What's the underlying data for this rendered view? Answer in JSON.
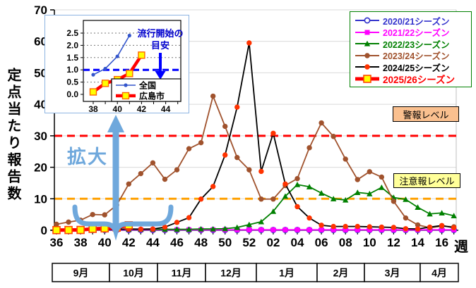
{
  "annotations": {
    "zoom_label": "拡大"
  },
  "chart_data": {
    "type": "line",
    "ylabel": "定点当たり報告数",
    "x_unit": "週",
    "ylim": [
      0,
      70
    ],
    "yticks": [
      0,
      10,
      20,
      30,
      40,
      50,
      60,
      70
    ],
    "x_tick_step": 2,
    "x": [
      "36",
      "37",
      "38",
      "39",
      "40",
      "41",
      "42",
      "43",
      "44",
      "45",
      "46",
      "47",
      "48",
      "49",
      "50",
      "51",
      "52",
      "01",
      "02",
      "03",
      "04",
      "05",
      "06",
      "07",
      "08",
      "09",
      "10",
      "11",
      "12",
      "13",
      "14",
      "15",
      "16",
      "17"
    ],
    "months": [
      "9月",
      "10月",
      "11月",
      "12月",
      "1月",
      "2月",
      "3月",
      "4月"
    ],
    "thresholds": [
      {
        "label": "警報レベル",
        "value": 30,
        "color": "#FF0000",
        "box_color": "#FAC08F"
      },
      {
        "label": "注意報レベル",
        "value": 10,
        "color": "#FFA000",
        "box_color": "#FFFF99"
      }
    ],
    "series": [
      {
        "name": "2020/21シーズン",
        "color": "#3333CC",
        "marker": "open-circle",
        "values": [
          0.1,
          0.1,
          0.1,
          0.1,
          0.1,
          0.1,
          0.1,
          0.1,
          0.1,
          0.1,
          0.1,
          0.1,
          0.1,
          0.1,
          0.1,
          0.1,
          0.1,
          0.1,
          0.1,
          0.1,
          0.1,
          0.1,
          0.1,
          0.1,
          0.1,
          0.1,
          0.1,
          0.1,
          0.1,
          0.1,
          0.1,
          0.1,
          0.1,
          0.1
        ]
      },
      {
        "name": "2021/22シーズン",
        "color": "#FF00FF",
        "marker": "square",
        "values": [
          0.15,
          0.15,
          0.15,
          0.15,
          0.15,
          0.15,
          0.15,
          0.15,
          0.15,
          0.15,
          0.15,
          0.15,
          0.15,
          0.15,
          0.15,
          0.15,
          0.15,
          0.15,
          0.15,
          0.15,
          0.15,
          0.15,
          0.15,
          0.15,
          0.15,
          0.15,
          0.15,
          0.15,
          0.15,
          0.15,
          0.15,
          0.15,
          0.15,
          0.15
        ]
      },
      {
        "name": "2022/23シーズン",
        "color": "#008000",
        "marker": "triangle",
        "values": [
          0.3,
          0.3,
          0.3,
          0.3,
          0.3,
          0.3,
          0.3,
          0.3,
          0.3,
          0.3,
          0.3,
          0.3,
          0.4,
          0.4,
          0.5,
          0.9,
          1.8,
          2.7,
          6,
          10.8,
          14.5,
          13.8,
          11.8,
          10,
          9.6,
          12,
          11.6,
          13.6,
          10.4,
          9.8,
          7.3,
          5.2,
          5.5,
          4.6
        ]
      },
      {
        "name": "2023/24シーズン",
        "color": "#A0522D",
        "marker": "circle",
        "values": [
          1.9,
          2.6,
          3.2,
          5,
          4.9,
          8,
          14.7,
          18,
          21.4,
          16.2,
          19.2,
          25.9,
          27.8,
          42.6,
          33,
          23.1,
          19.2,
          9.9,
          9.9,
          14.2,
          16.4,
          26.2,
          34.1,
          29.8,
          22.6,
          16.1,
          18.6,
          16.9,
          9.2,
          3.9,
          1.7,
          0.8,
          1.3,
          1.1
        ]
      },
      {
        "name": "2024/25シーズン",
        "color": "#000000",
        "marker": "circle",
        "marker_color": "#FF3300",
        "values": [
          0.1,
          0.1,
          0.15,
          0.2,
          0.2,
          0.3,
          0.4,
          0.35,
          0.4,
          1,
          2.5,
          4,
          9.9,
          13.9,
          23.9,
          39.1,
          59.5,
          18.7,
          30.8,
          14.7,
          7.5,
          3.9,
          1.6,
          1.2,
          1.2,
          1.2,
          1.1,
          1,
          0.9,
          0.5,
          0.4,
          1,
          1.5,
          0.8
        ]
      },
      {
        "name": "2025/26シーズン",
        "color": "#FF0000",
        "marker": "yellow-square",
        "marker_color": "#FFFF00",
        "line_width": 5,
        "values": [
          0.05,
          0.08,
          0.1,
          0.45,
          0.6,
          0.85,
          1.6,
          null,
          null,
          null,
          null,
          null,
          null,
          null,
          null,
          null,
          null,
          null,
          null,
          null,
          null,
          null,
          null,
          null,
          null,
          null,
          null,
          null,
          null,
          null,
          null,
          null,
          null,
          null
        ]
      }
    ],
    "inset": {
      "type": "line",
      "annotation_lines": [
        "流行開始の",
        "目安"
      ],
      "threshold_value": 1.0,
      "yticks": [
        0.0,
        0.5,
        1.0,
        1.5,
        2.0,
        2.5
      ],
      "xticks": [
        38,
        40,
        42,
        44
      ],
      "series": [
        {
          "name": "全国",
          "color": "#3355CC",
          "marker": "circle",
          "x": [
            38,
            39,
            40,
            41
          ],
          "values": [
            0.8,
            1.05,
            1.55,
            2.4
          ]
        },
        {
          "name": "広島市",
          "color": "#FF0000",
          "marker": "yellow-square",
          "marker_color": "#FFFF00",
          "line_width": 4.5,
          "x": [
            38,
            39,
            40,
            41,
            42
          ],
          "values": [
            0.1,
            0.45,
            0.6,
            0.85,
            1.6
          ]
        }
      ]
    }
  }
}
